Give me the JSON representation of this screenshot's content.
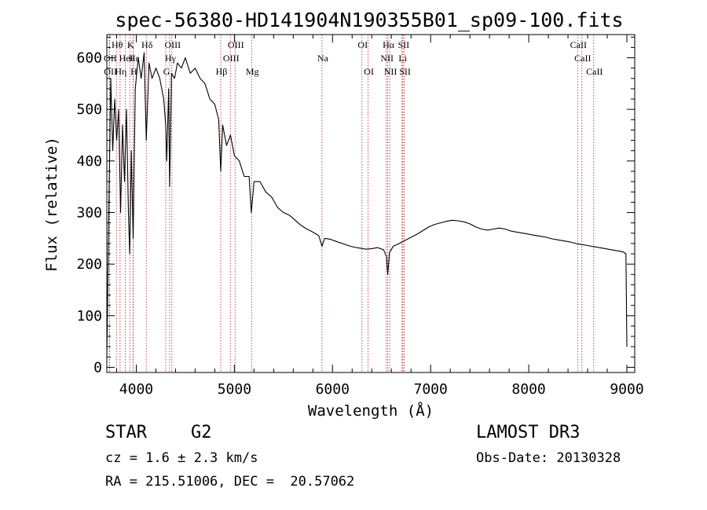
{
  "chart_data": {
    "type": "line",
    "title": "spec-56380-HD141904N190355B01_sp09-100.fits",
    "xlabel": "Wavelength (Å)",
    "ylabel": "Flux (relative)",
    "xlim": [
      3700,
      9080
    ],
    "ylim": [
      -10,
      645
    ],
    "xticks": [
      4000,
      5000,
      6000,
      7000,
      8000,
      9000
    ],
    "yticks": [
      0,
      100,
      200,
      300,
      400,
      500,
      600
    ],
    "series": [
      {
        "name": "flux",
        "x": [
          3700,
          3720,
          3740,
          3760,
          3780,
          3800,
          3820,
          3840,
          3860,
          3880,
          3900,
          3920,
          3933,
          3950,
          3968,
          3990,
          4020,
          4050,
          4080,
          4102,
          4130,
          4160,
          4200,
          4240,
          4280,
          4300,
          4310,
          4330,
          4340,
          4360,
          4390,
          4420,
          4460,
          4500,
          4550,
          4600,
          4650,
          4700,
          4750,
          4800,
          4840,
          4861,
          4880,
          4920,
          4960,
          5000,
          5050,
          5100,
          5150,
          5172,
          5200,
          5260,
          5320,
          5380,
          5440,
          5500,
          5560,
          5620,
          5680,
          5740,
          5800,
          5860,
          5893,
          5920,
          5980,
          6040,
          6100,
          6160,
          6220,
          6280,
          6340,
          6400,
          6460,
          6520,
          6550,
          6563,
          6580,
          6620,
          6680,
          6740,
          6800,
          6860,
          6920,
          6980,
          7040,
          7100,
          7160,
          7220,
          7280,
          7340,
          7400,
          7460,
          7520,
          7580,
          7640,
          7700,
          7760,
          7820,
          7880,
          7940,
          8000,
          8060,
          8120,
          8180,
          8240,
          8300,
          8360,
          8420,
          8480,
          8540,
          8600,
          8660,
          8720,
          8780,
          8840,
          8900,
          8960,
          8990,
          9000
        ],
        "y": [
          20,
          300,
          560,
          420,
          520,
          440,
          500,
          300,
          470,
          360,
          500,
          300,
          220,
          420,
          250,
          540,
          600,
          560,
          610,
          440,
          590,
          560,
          580,
          560,
          520,
          470,
          400,
          540,
          350,
          570,
          560,
          590,
          580,
          600,
          570,
          580,
          560,
          550,
          520,
          510,
          480,
          380,
          470,
          430,
          450,
          410,
          400,
          370,
          370,
          300,
          360,
          360,
          340,
          330,
          310,
          300,
          295,
          285,
          275,
          268,
          262,
          255,
          235,
          250,
          248,
          244,
          240,
          236,
          233,
          231,
          229,
          230,
          232,
          228,
          215,
          180,
          222,
          235,
          240,
          246,
          252,
          258,
          265,
          272,
          277,
          280,
          283,
          285,
          284,
          282,
          278,
          272,
          268,
          266,
          268,
          270,
          268,
          264,
          262,
          260,
          258,
          256,
          254,
          252,
          249,
          247,
          245,
          243,
          240,
          238,
          236,
          234,
          232,
          230,
          228,
          226,
          224,
          220,
          40
        ]
      }
    ],
    "line_labels": [
      {
        "label": "Hθ",
        "x": 3798,
        "row": 1
      },
      {
        "label": "K",
        "x": 3934,
        "row": 1
      },
      {
        "label": "Hδ",
        "x": 4102,
        "row": 1
      },
      {
        "label": "OIII",
        "x": 4363,
        "row": 1
      },
      {
        "label": "OIII",
        "x": 5007,
        "row": 1
      },
      {
        "label": "OI",
        "x": 6300,
        "row": 1
      },
      {
        "label": "Hα",
        "x": 6563,
        "row": 1
      },
      {
        "label": "SII",
        "x": 6717,
        "row": 1
      },
      {
        "label": "CaII",
        "x": 8498,
        "row": 1
      },
      {
        "label": "OII",
        "x": 3727,
        "row": 2
      },
      {
        "label": "HeI",
        "x": 3889,
        "row": 2
      },
      {
        "label": "Hε",
        "x": 3970,
        "row": 2
      },
      {
        "label": "Hγ",
        "x": 4340,
        "row": 2
      },
      {
        "label": "OIII",
        "x": 4959,
        "row": 2
      },
      {
        "label": "Na",
        "x": 5893,
        "row": 2
      },
      {
        "label": "NII",
        "x": 6548,
        "row": 2
      },
      {
        "label": "Li",
        "x": 6708,
        "row": 2
      },
      {
        "label": "CaII",
        "x": 8542,
        "row": 2
      },
      {
        "label": "OII",
        "x": 3729,
        "row": 3
      },
      {
        "label": "Hη",
        "x": 3835,
        "row": 3
      },
      {
        "label": "H",
        "x": 3968,
        "row": 3
      },
      {
        "label": "G",
        "x": 4300,
        "row": 3
      },
      {
        "label": "Hβ",
        "x": 4861,
        "row": 3
      },
      {
        "label": "Mg",
        "x": 5175,
        "row": 3
      },
      {
        "label": "OI",
        "x": 6363,
        "row": 3
      },
      {
        "label": "NII",
        "x": 6583,
        "row": 3
      },
      {
        "label": "SII",
        "x": 6731,
        "row": 3
      },
      {
        "label": "CaII",
        "x": 8662,
        "row": 3
      }
    ],
    "grid": false,
    "legend": "none"
  },
  "info": {
    "object_class": "STAR",
    "subclass": "G2",
    "survey": "LAMOST DR3",
    "cz": "cz = 1.6 ± 2.3 km/s",
    "obs_date": "Obs-Date: 20130328",
    "coords": "RA = 215.51006, DEC =  20.57062"
  },
  "colors": {
    "line_marker": "#b22222",
    "spectrum": "#000000",
    "axes": "#000000"
  }
}
